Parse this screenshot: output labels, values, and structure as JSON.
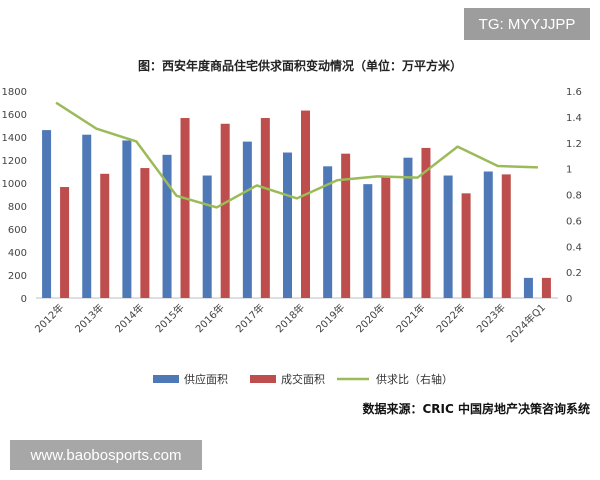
{
  "header": {
    "badge": "TG: MYYJJPP"
  },
  "footer": {
    "watermark": "www.baobosports.com"
  },
  "chart_data": {
    "type": "bar",
    "title": "图：西安年度商品住宅供求面积变动情况（单位：万平方米）",
    "source": "数据来源：CRIC 中国房地产决策咨询系统",
    "categories": [
      "2012年",
      "2013年",
      "2014年",
      "2015年",
      "2016年",
      "2017年",
      "2018年",
      "2019年",
      "2020年",
      "2021年",
      "2022年",
      "2023年",
      "2024年Q1"
    ],
    "y_left": {
      "min": 0,
      "max": 1800,
      "ticks": [
        0,
        200,
        400,
        600,
        800,
        1000,
        1200,
        1400,
        1600,
        1800
      ]
    },
    "y_right": {
      "min": 0,
      "max": 1.6,
      "ticks": [
        "0",
        "0.2",
        "0.4",
        "0.6",
        "0.8",
        "1",
        "1.2",
        "1.4",
        "1.6"
      ]
    },
    "grid": false,
    "legend_position": "bottom",
    "series": [
      {
        "name": "供应面积",
        "kind": "bar",
        "axis": "left",
        "color": "#4f78b7",
        "values": [
          1460,
          1420,
          1370,
          1245,
          1065,
          1360,
          1265,
          1145,
          990,
          1220,
          1065,
          1100,
          175
        ]
      },
      {
        "name": "成交面积",
        "kind": "bar",
        "axis": "left",
        "color": "#be4d4d",
        "values": [
          965,
          1080,
          1130,
          1565,
          1515,
          1565,
          1630,
          1255,
          1055,
          1305,
          910,
          1075,
          175
        ]
      },
      {
        "name": "供求比（右轴）",
        "kind": "line",
        "axis": "right",
        "color": "#9bbb59",
        "values": [
          1.51,
          1.31,
          1.21,
          0.79,
          0.7,
          0.87,
          0.77,
          0.91,
          0.94,
          0.93,
          1.17,
          1.02,
          1.01
        ]
      }
    ]
  }
}
